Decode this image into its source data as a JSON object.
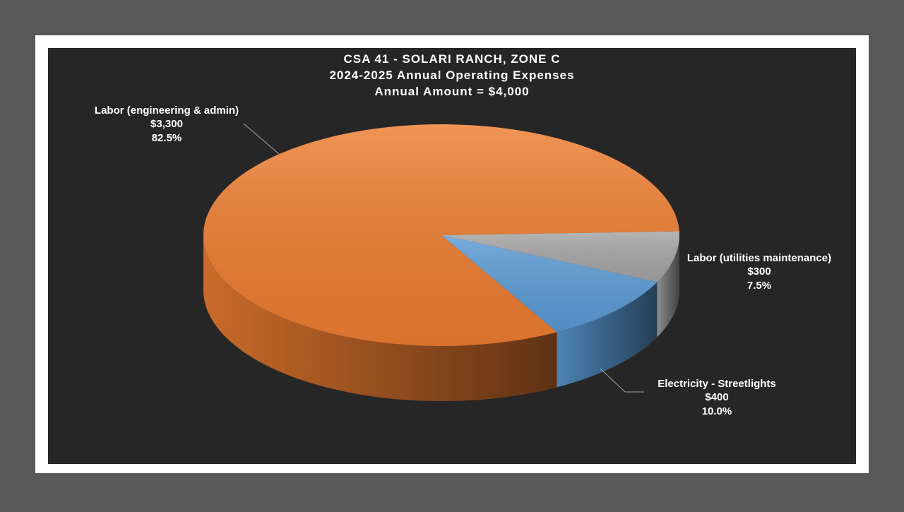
{
  "chart_data": {
    "type": "pie3d",
    "title": "CSA 41 - SOLARI RANCH, ZONE C",
    "subtitle": "2024-2025 Annual Operating Expenses",
    "annotation": "Annual Amount = $4,000",
    "categories": [
      "Labor (utilities maintenance)",
      "Electricity - Streetlights",
      "Labor (engineering & admin)"
    ],
    "values": [
      300,
      400,
      3300
    ],
    "value_labels": [
      "$300",
      "$400",
      "$3,300"
    ],
    "percents": [
      7.5,
      10.0,
      82.5
    ],
    "percent_labels": [
      "7.5%",
      "10.0%",
      "82.5%"
    ],
    "colors": [
      "#a5a5a5",
      "#5b9bd5",
      "#ed7d31"
    ]
  }
}
